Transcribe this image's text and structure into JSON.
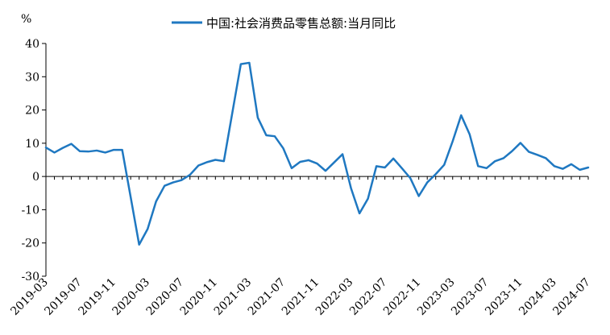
{
  "chart_data": {
    "type": "line",
    "ylabel": "%",
    "ylim": [
      -30,
      40
    ],
    "yticks": [
      -30,
      -20,
      -10,
      0,
      10,
      20,
      30,
      40
    ],
    "legend_position": "top",
    "grid": false,
    "x_tick_labels": [
      "2019-03",
      "2019-07",
      "2019-11",
      "2020-03",
      "2020-07",
      "2020-11",
      "2021-03",
      "2021-07",
      "2021-11",
      "2022-03",
      "2022-07",
      "2022-11",
      "2023-03",
      "2023-07",
      "2023-11",
      "2024-03",
      "2024-07"
    ],
    "x": [
      "2019-03",
      "2019-04",
      "2019-05",
      "2019-06",
      "2019-07",
      "2019-08",
      "2019-09",
      "2019-10",
      "2019-11",
      "2019-12",
      "2020-01",
      "2020-02",
      "2020-03",
      "2020-04",
      "2020-05",
      "2020-06",
      "2020-07",
      "2020-08",
      "2020-09",
      "2020-10",
      "2020-11",
      "2020-12",
      "2021-01",
      "2021-02",
      "2021-03",
      "2021-04",
      "2021-05",
      "2021-06",
      "2021-07",
      "2021-08",
      "2021-09",
      "2021-10",
      "2021-11",
      "2021-12",
      "2022-01",
      "2022-02",
      "2022-03",
      "2022-04",
      "2022-05",
      "2022-06",
      "2022-07",
      "2022-08",
      "2022-09",
      "2022-10",
      "2022-11",
      "2022-12",
      "2023-01",
      "2023-02",
      "2023-03",
      "2023-04",
      "2023-05",
      "2023-06",
      "2023-07",
      "2023-08",
      "2023-09",
      "2023-10",
      "2023-11",
      "2023-12",
      "2024-01",
      "2024-02",
      "2024-03",
      "2024-04",
      "2024-05",
      "2024-06",
      "2024-07"
    ],
    "series": [
      {
        "name": "中国:社会消费品零售总额:当月同比",
        "color": "#1f78c1",
        "values": [
          8.7,
          7.2,
          8.6,
          9.8,
          7.6,
          7.5,
          7.8,
          7.2,
          8.0,
          8.0,
          -6.2,
          -20.5,
          -15.8,
          -7.5,
          -2.8,
          -1.8,
          -1.1,
          0.5,
          3.3,
          4.3,
          5.0,
          4.6,
          19.2,
          33.8,
          34.2,
          17.7,
          12.4,
          12.1,
          8.5,
          2.5,
          4.4,
          4.9,
          3.9,
          1.7,
          4.2,
          6.7,
          -3.5,
          -11.1,
          -6.7,
          3.1,
          2.7,
          5.4,
          2.5,
          -0.5,
          -5.9,
          -1.8,
          0.7,
          3.5,
          10.6,
          18.4,
          12.7,
          3.1,
          2.5,
          4.6,
          5.5,
          7.6,
          10.1,
          7.4,
          6.5,
          5.5,
          3.1,
          2.3,
          3.7,
          2.0,
          2.7
        ]
      }
    ]
  }
}
